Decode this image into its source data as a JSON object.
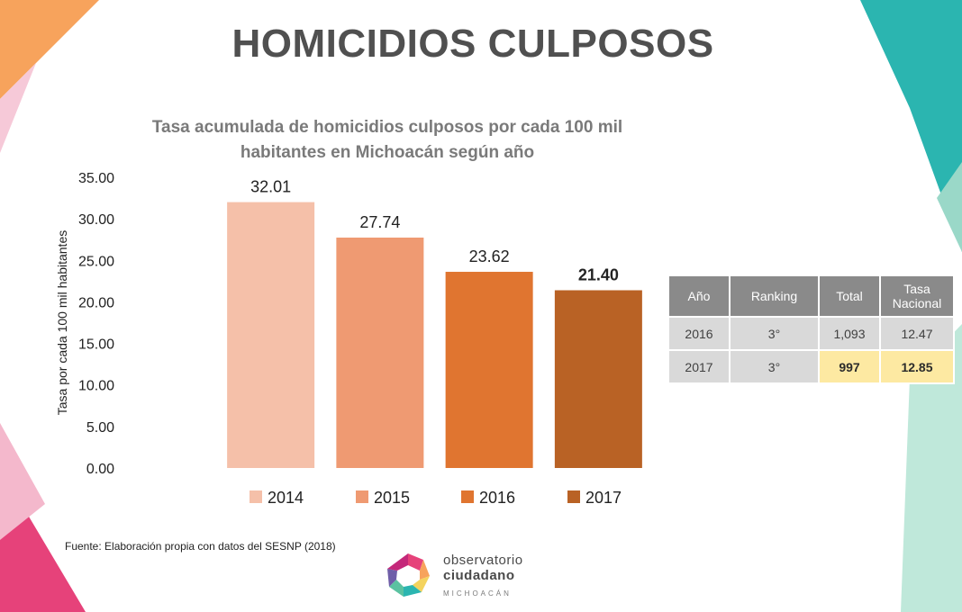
{
  "page": {
    "title": "HOMICIDIOS CULPOSOS",
    "subtitle_line1": "Tasa acumulada de homicidios culposos por cada 100 mil",
    "subtitle_line2": "habitantes en Michoacán según año",
    "source": "Fuente: Elaboración propia con datos del SESNP (2018)"
  },
  "chart_data": {
    "type": "bar",
    "title": "Tasa acumulada de homicidios culposos por cada 100 mil habitantes en Michoacán según año",
    "categories": [
      "2014",
      "2015",
      "2016",
      "2017"
    ],
    "values": [
      32.01,
      27.74,
      23.62,
      21.4
    ],
    "value_labels": [
      "32.01",
      "27.74",
      "23.62",
      "21.40"
    ],
    "colors": [
      "#f5c0a9",
      "#ef9a72",
      "#e07530",
      "#b96225"
    ],
    "ylabel": "Tasa por cada 100 mil habitantes",
    "ylim": [
      0,
      35
    ],
    "yticks": [
      "0.00",
      "5.00",
      "10.00",
      "15.00",
      "20.00",
      "25.00",
      "30.00",
      "35.00"
    ],
    "legend": [
      "2014",
      "2015",
      "2016",
      "2017"
    ],
    "legend_position": "bottom",
    "grid": false
  },
  "table": {
    "headers": [
      "Año",
      "Ranking",
      "Total",
      "Tasa Nacional"
    ],
    "rows": [
      [
        "2016",
        "3°",
        "1,093",
        "12.47"
      ],
      [
        "2017",
        "3°",
        "997",
        "12.85"
      ]
    ],
    "highlight_color": "#fde9a2"
  },
  "logo": {
    "line1": "observatorio",
    "line2": "ciudadano",
    "line3": "MICHOACÁN"
  }
}
